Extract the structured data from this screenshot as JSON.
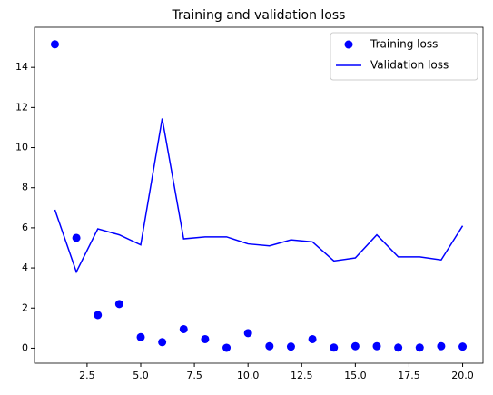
{
  "chart_data": {
    "type": "scatter-line",
    "title": "Training and validation loss",
    "x": [
      1,
      2,
      3,
      4,
      5,
      6,
      7,
      8,
      9,
      10,
      11,
      12,
      13,
      14,
      15,
      16,
      17,
      18,
      19,
      20
    ],
    "series": [
      {
        "name": "Training loss",
        "color": "#0000ff",
        "style": "marker",
        "values": [
          15.15,
          5.5,
          1.65,
          2.2,
          0.55,
          0.3,
          0.95,
          0.45,
          0.02,
          0.75,
          0.1,
          0.08,
          0.45,
          0.03,
          0.1,
          0.1,
          0.03,
          0.03,
          0.1,
          0.08
        ]
      },
      {
        "name": "Validation loss",
        "color": "#0000ff",
        "style": "line",
        "values": [
          6.9,
          3.8,
          5.95,
          5.65,
          5.15,
          11.45,
          5.45,
          5.55,
          5.55,
          5.2,
          5.1,
          5.4,
          5.3,
          4.35,
          4.5,
          5.65,
          4.55,
          4.55,
          4.4,
          6.1
        ]
      }
    ],
    "xlim": [
      0.05,
      20.95
    ],
    "xticks": [
      {
        "value": 2.5,
        "label": "2.5"
      },
      {
        "value": 5,
        "label": "5.0"
      },
      {
        "value": 7.5,
        "label": "7.5"
      },
      {
        "value": 10,
        "label": "10.0"
      },
      {
        "value": 12.5,
        "label": "12.5"
      },
      {
        "value": 15,
        "label": "15.0"
      },
      {
        "value": 17.5,
        "label": "17.5"
      },
      {
        "value": 20,
        "label": "20.0"
      }
    ],
    "ylim": [
      -0.75,
      16
    ],
    "yticks": [
      0,
      2,
      4,
      6,
      8,
      10,
      12,
      14
    ],
    "legend": "upper right"
  }
}
